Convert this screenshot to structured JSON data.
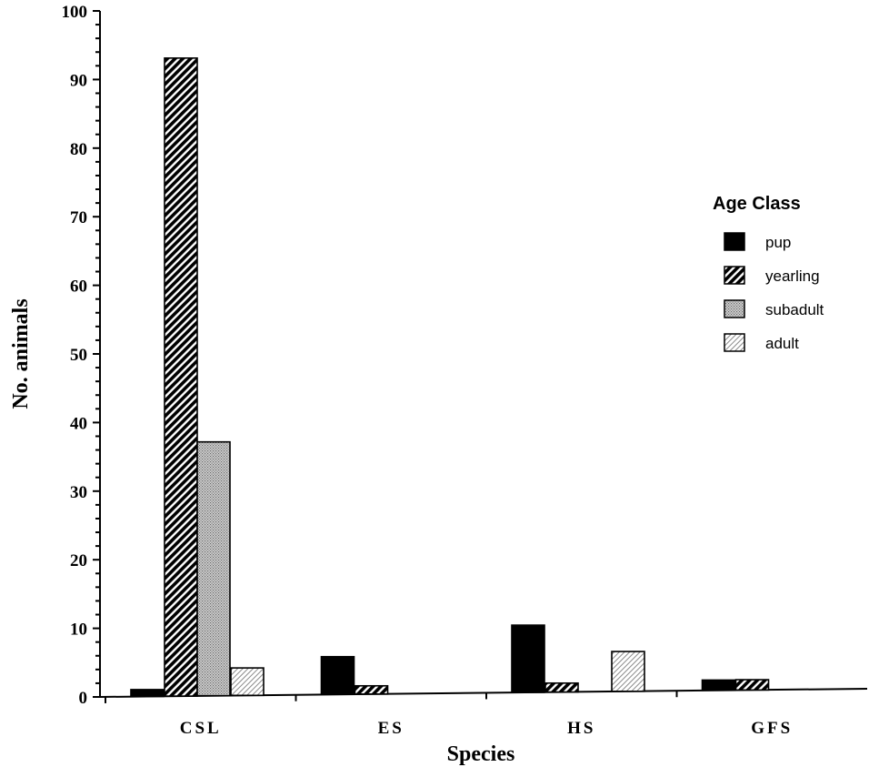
{
  "chart_data": {
    "type": "bar",
    "xlabel": "Species",
    "ylabel": "No.  animals",
    "categories": [
      "CSL",
      "ES",
      "HS",
      "GFS"
    ],
    "ylim": [
      0,
      100
    ],
    "yticks": [
      0,
      10,
      20,
      30,
      40,
      50,
      60,
      70,
      80,
      90,
      100
    ],
    "grid": false,
    "legend": {
      "title": "Age Class",
      "placement": "right"
    },
    "series": [
      {
        "name": "pup",
        "values": [
          1,
          5.5,
          9.8,
          1.5
        ],
        "color": "#000000",
        "pattern": "solid"
      },
      {
        "name": "yearling",
        "values": [
          93,
          1.2,
          1.3,
          1.5
        ],
        "color": "#000000",
        "pattern": "dense-diagonal"
      },
      {
        "name": "subadult",
        "values": [
          37,
          0,
          0,
          0
        ],
        "color": "#999999",
        "pattern": "fine-dots"
      },
      {
        "name": "adult",
        "values": [
          4,
          0,
          5.8,
          0
        ],
        "color": "#bbbbbb",
        "pattern": "light-diagonal"
      }
    ]
  }
}
